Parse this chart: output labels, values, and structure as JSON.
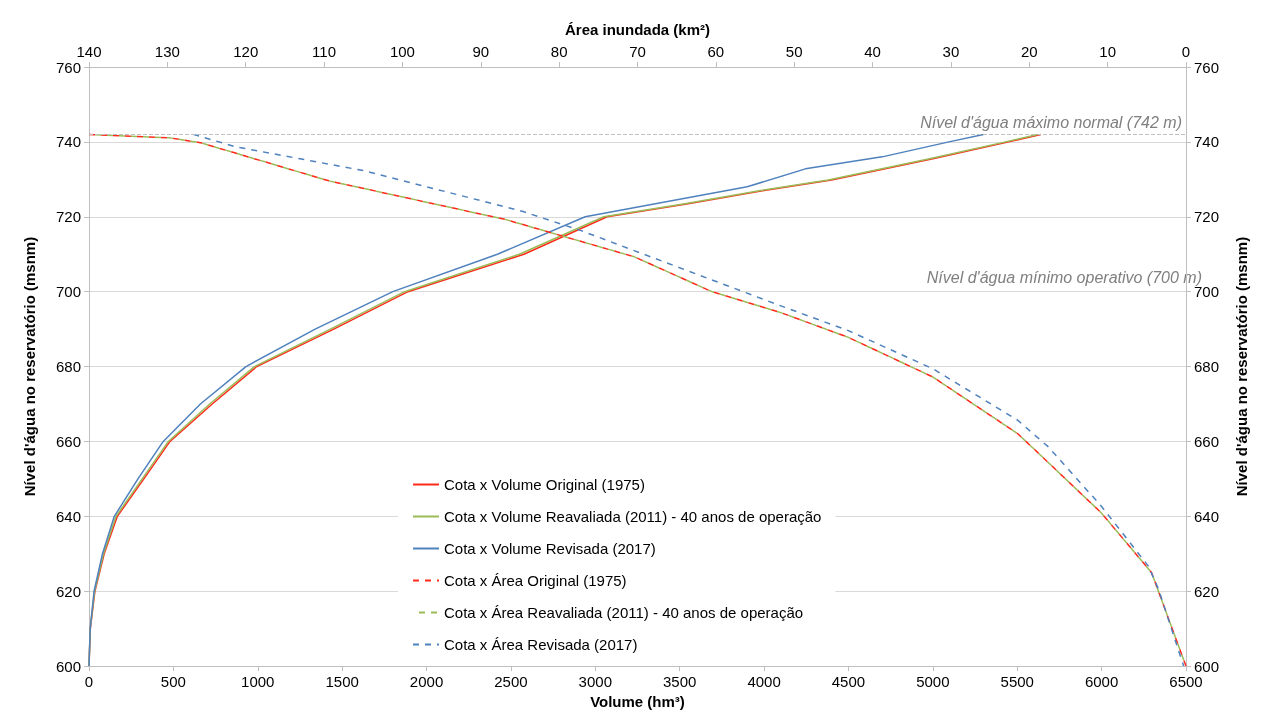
{
  "chart_data": {
    "type": "line",
    "xlabel": "Volume (hm³)",
    "x2label": "Área inundada (km²)",
    "ylabel": "Nível d'água no reservatório (msnm)",
    "y2label": "Nível d'água no reservatório (msnm)",
    "xlim": [
      0,
      6500
    ],
    "xticks": [
      0,
      500,
      1000,
      1500,
      2000,
      2500,
      3000,
      3500,
      4000,
      4500,
      5000,
      5500,
      6000,
      6500
    ],
    "x2lim": [
      140,
      0
    ],
    "x2ticks": [
      140,
      130,
      120,
      110,
      100,
      90,
      80,
      70,
      60,
      50,
      40,
      30,
      20,
      10,
      0
    ],
    "ylim": [
      600,
      760
    ],
    "yticks": [
      600,
      620,
      640,
      660,
      680,
      700,
      720,
      740,
      760
    ],
    "y2lim": [
      600,
      760
    ],
    "y2ticks": [
      600,
      620,
      640,
      660,
      680,
      700,
      720,
      740,
      760
    ],
    "grid": "y",
    "legend": "bottom",
    "marker": "none",
    "series": [
      {
        "name": "Cota x Volume Original (1975)",
        "color": "#ff2a1a",
        "line_style": "solid",
        "x": [
          0,
          8,
          35,
          90,
          168,
          325,
          480,
          730,
          994,
          1450,
          1890,
          2577,
          3070,
          3550,
          4000,
          4400,
          5000,
          5450,
          5640
        ],
        "values": [
          600,
          610,
          620,
          630,
          640,
          650,
          660,
          670,
          680,
          690,
          700,
          710,
          720,
          723.5,
          727,
          729.8,
          735.5,
          740,
          742
        ]
      },
      {
        "name": "Cota x Volume Reavaliada (2011) - 40 anos de operação",
        "color": "#9bbb59",
        "line_style": "solid",
        "x": [
          0,
          7,
          33,
          86,
          160,
          315,
          470,
          715,
          980,
          1430,
          1870,
          2550,
          3050,
          3530,
          3980,
          4380,
          4980,
          5430,
          5620
        ],
        "values": [
          600,
          610,
          620,
          630,
          640,
          650,
          660,
          670,
          680,
          690,
          700,
          710,
          720,
          723.5,
          727,
          729.8,
          735.5,
          740,
          742
        ]
      },
      {
        "name": "Cota x Volume Revisada (2017)",
        "color": "#4f81bd",
        "line_style": "solid",
        "x": [
          0,
          7,
          30,
          80,
          150,
          290,
          440,
          660,
          930,
          1340,
          1800,
          2420,
          2940,
          3900,
          4245,
          4700,
          5095,
          5300
        ],
        "values": [
          600,
          610,
          620,
          630,
          640,
          650,
          660,
          670,
          680,
          690,
          700,
          710,
          720,
          728,
          732.8,
          736,
          740,
          742
        ]
      },
      {
        "name": "Cota x Área Original (1975)",
        "color": "#ff2a1a",
        "line_style": "dashed",
        "axis": "x2",
        "x": [
          140,
          129.8,
          125.8,
          109.4,
          86.9,
          70.4,
          60.5,
          51.7,
          43.1,
          32.3,
          21.5,
          18.9,
          10.8,
          4.4,
          0
        ],
        "values": [
          742,
          741.1,
          739.8,
          729.6,
          719.3,
          709.3,
          700,
          694.4,
          687.8,
          677.2,
          662.1,
          657,
          640.9,
          625,
          600
        ]
      },
      {
        "name": "Cota x Área Reavaliada (2011) - 40 anos de operação",
        "color": "#9bbb59",
        "line_style": "dashed",
        "axis": "x2",
        "x": [
          140,
          129.8,
          125.8,
          109.4,
          86.9,
          70.4,
          60.5,
          51.7,
          43.1,
          32.3,
          21.5,
          18.9,
          10.8,
          4.4,
          0
        ],
        "values": [
          742,
          741.1,
          739.8,
          729.6,
          719.3,
          709.3,
          700,
          694.4,
          687.8,
          677.2,
          662.1,
          657,
          640.9,
          625,
          600
        ]
      },
      {
        "name": "Cota x Área Revisada (2017)",
        "color": "#4f81bd",
        "line_style": "dashed",
        "axis": "x2",
        "x": [
          126.7,
          121.3,
          104.9,
          84.6,
          77.2,
          51.7,
          43.1,
          32.3,
          21.5,
          17.6,
          10.8,
          4.8,
          3.5,
          0.3
        ],
        "values": [
          742,
          738.7,
          732.3,
          721.4,
          716.3,
          696.2,
          689.6,
          679.4,
          665.7,
          658.6,
          642.7,
          626.7,
          620.5,
          600
        ]
      }
    ],
    "ref_lines": [
      {
        "axis": "y",
        "value": 742,
        "label": "Nível d'água máximo normal (742 m)",
        "color": "#bfbfbf",
        "line_style": "dashed"
      }
    ],
    "annotations": [
      "Nível d'água mínimo operativo (700 m)"
    ]
  }
}
